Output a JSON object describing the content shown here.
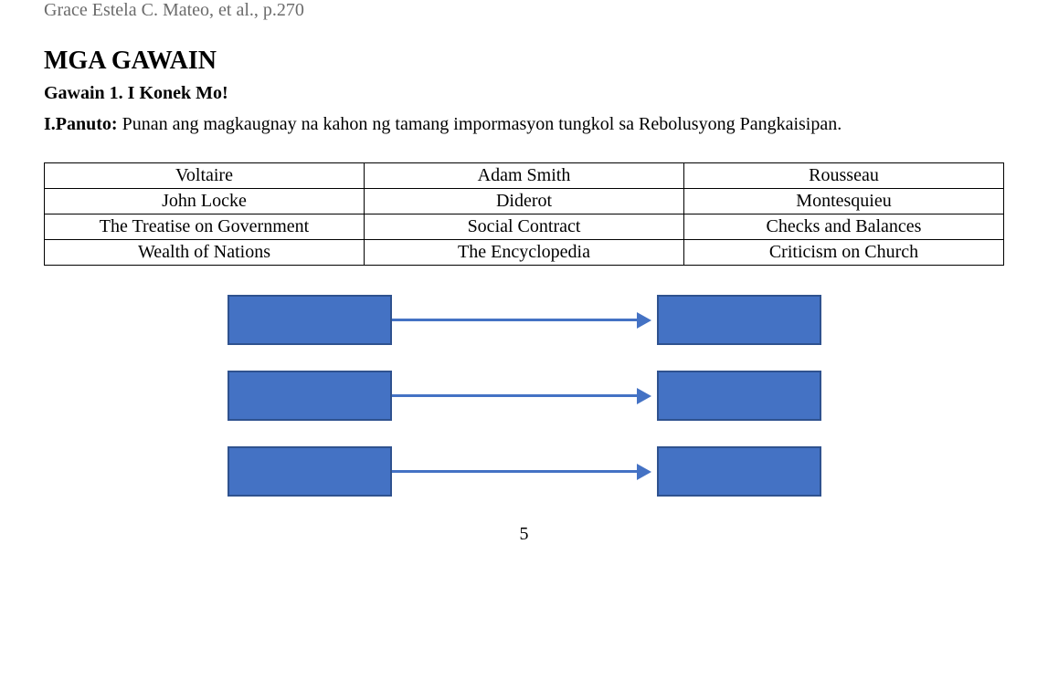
{
  "top_reference": "Grace Estela C. Mateo, et al., p.270",
  "heading": "MGA GAWAIN",
  "sub_heading": "Gawain 1. I Konek Mo!",
  "instructions_label": "I.Panuto:",
  "instructions_text": " Punan ang magkaugnay na kahon ng tamang impormasyon tungkol sa Rebolusyong Pangkaisipan.",
  "table": {
    "rows": [
      [
        "Voltaire",
        "Adam Smith",
        "Rousseau"
      ],
      [
        "John Locke",
        "Diderot",
        "Montesquieu"
      ],
      [
        "The Treatise on Government",
        "Social Contract",
        "Checks and Balances"
      ],
      [
        "Wealth of Nations",
        "The Encyclopedia",
        "Criticism on Church"
      ]
    ]
  },
  "diagram": {
    "box_fill": "#4472c4",
    "box_border": "#2f528f",
    "arrow_color": "#4472c4",
    "rows": 3
  },
  "page_number": "5"
}
